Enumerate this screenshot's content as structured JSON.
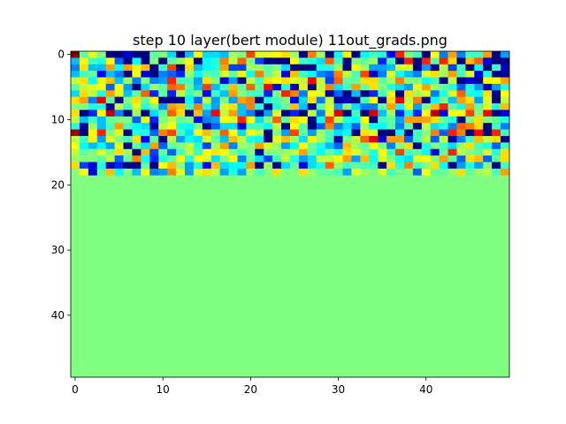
{
  "chart_data": {
    "type": "heatmap",
    "title": "step 10 layer(bert module) 11out_grads.png",
    "xlabel": "",
    "ylabel": "",
    "rows": 50,
    "cols": 50,
    "active_rows": 19,
    "colormap": "jet",
    "value_range": [
      -1,
      1
    ],
    "fill_value": 0,
    "x_ticks": [
      0,
      10,
      20,
      30,
      40
    ],
    "y_ticks": [
      0,
      10,
      20,
      30,
      40
    ],
    "x_tick_labels": [
      "0",
      "10",
      "20",
      "30",
      "40"
    ],
    "y_tick_labels": [
      "0",
      "10",
      "20",
      "30",
      "40"
    ],
    "active_values": [
      "pNRO--B:5NOJ1ISJJIPOYRRSTP<WP5KS6KMLCZOM:SGVGMMV?HS",
      "ISMLSF:K:O7NPS7KLWQXOE>>3SMLJXM1ONPDM=Z=ZNZT;UXB9=UI",
      "GTIIVKVRU=MY0TIKLVEEPPNOJ>=6LLP;SPHHIRR:H@QEM:K;MAK<",
      "IMNCIG;SB=GFDPKNMRNSKWNQBUMKGFWQMYAGRKIGRTPVMRBL7@",
      "QTKRUIPGOGHZMMHTOBH7QMTSTRQ[QEXNNTTNPWOOKM;Q?B@SSVO",
      "NQRSFSH8JPNXWNIYIMUNXN[BLAR?QWJMVNTOLJHSVPNLFLHAHL",
      "JTQLVRINXDNDQMOCMIVOMMDOZWGSR@F?I=DMR6TPRGLRXLKT@S",
      "TVG\\N=OTNS;;?KFQHOHVW1LMOBJTGQ@A;MS?T\\QW:KOIVTHR7Q",
      "OOLL@QMRLOHVUMWLHRTIWL>LNUI@NRHOJGGNVKSHOUZNKVNRLU",
      "T2DS]G4P2JNXT3UH[QVIG3HR2D3QGR\\?M3\\IPDKDS]BSSYO[6BN4",
      "QIMINOOFRDOQNOCGHSRZSJOXNTS;KYQLKS<MNHVVVTNL:OTONLY",
      "L@PIMVMKJ@QSLKO@FJJBMMKQ:SN=FWGJFPKKNGN=QJLGXWT<MG",
      "^1SZOR6LLFWYMJSUOXSJSQ;OHYNHPMJK8TR=<K>MOWFZW2[=ZMOO",
      "QMSHROMTCN?QHKJRNIUQLK>RUPJSPM@OQX\\BVVFMQFQ@GMUQT?",
      "SKIKHR?NJVFNOQLEPVGPOVRPHKSNLIFUPNSOGOT=LOMJPTMLFM",
      "QNOROTP8UENFMQMSTSOMO@OOPQVNKNLTROLSMYMNKBNZQONRLT",
      "POONQFNWKDLNSLSRJOSGNJEMQLHJQQSVHUKROKJRSOVNFTUFNT",
      "TEBLAD6?N=SUOHLCUJKKV:P=JNBJLXPMNMM>TLWMOTK:HLHO;M",
      "OSBNUKOISGHWRHRTQHLHPMOTOOTPNNMHRPORMOOFSNNPTNPQMV"
    ],
    "value_encoding": "each character c encodes value (code(c) - 79) / 16"
  }
}
